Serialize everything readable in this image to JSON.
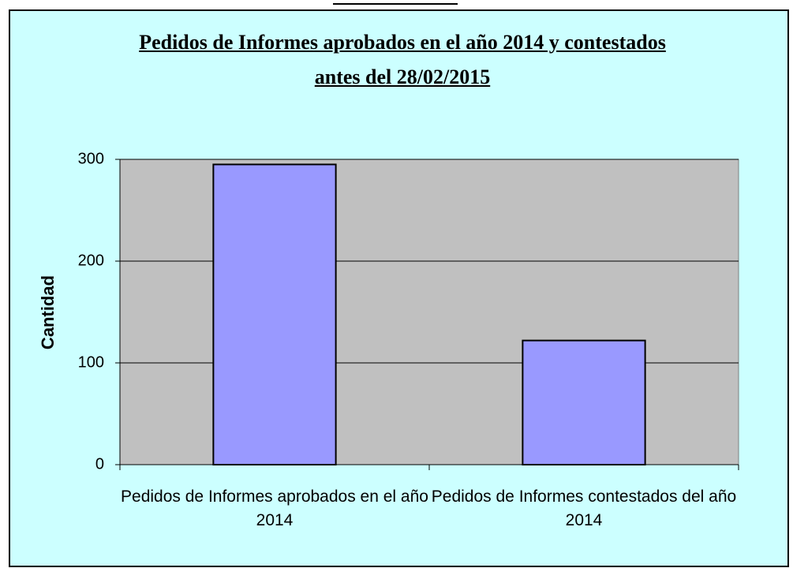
{
  "chart_data": {
    "type": "bar",
    "title": "Pedidos de Informes aprobados  en el año 2014 y contestados antes del 28/02/2015",
    "y_label": "Cantidad",
    "categories": [
      "Pedidos de Informes aprobados en el año 2014",
      "Pedidos de Informes contestados del año 2014"
    ],
    "values": [
      295,
      122
    ],
    "color": "#9999ff",
    "ylim": [
      0,
      300
    ],
    "yticks": [
      0,
      100,
      200,
      300
    ],
    "grid": true
  }
}
